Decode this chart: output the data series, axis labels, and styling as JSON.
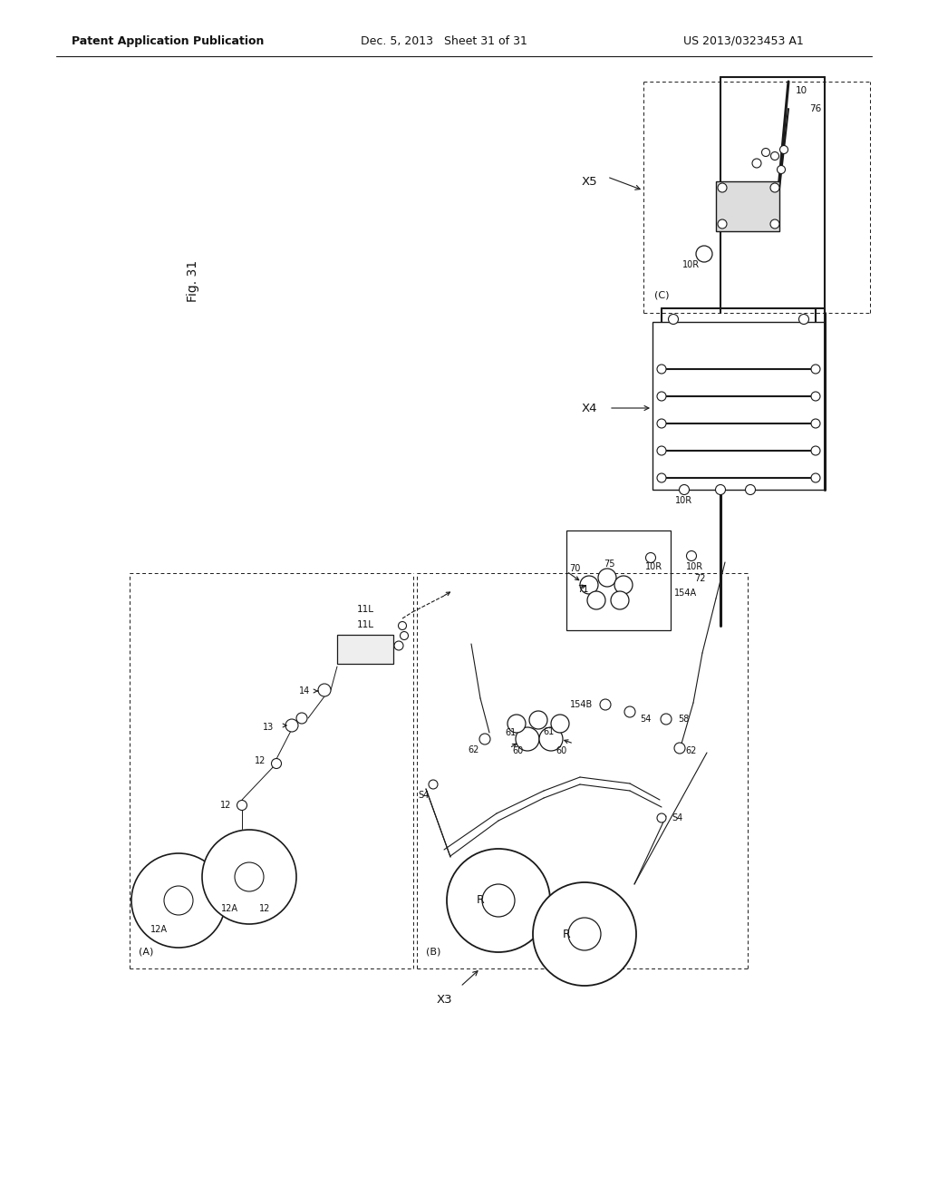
{
  "bg_color": "#ffffff",
  "line_color": "#1a1a1a",
  "header_left": "Patent Application Publication",
  "header_mid": "Dec. 5, 2013   Sheet 31 of 31",
  "header_right": "US 2013/0323453 A1"
}
